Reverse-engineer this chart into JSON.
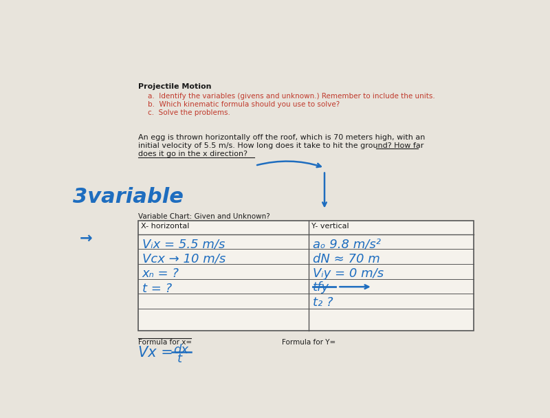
{
  "background_color": "#e8e4dc",
  "title": "Projectile Motion",
  "inst_a": "a.  Identify the variables (givens and unknown.) Remember to include the units.",
  "inst_b": "b.  Which kinematic formula should you use to solve?",
  "inst_c": "c.  Solve the problems.",
  "prob1": "An egg is thrown horizontally off the roof, which is 70 meters high, with an",
  "prob2": "initial velocity of 5.5 m/s. How long does it take to hit the ground? How far",
  "prob3": "does it go in the x direction?",
  "handwritten_label": "3variable",
  "table_label": "Variable Chart: Given and Unknown?",
  "col1_header": "X- horizontal",
  "col2_header": "Y- vertical",
  "formula_x_label": "Formula for x=",
  "formula_y_label": "Formula for Y=",
  "red_color": "#c0392b",
  "blue_hw": "#1e6dbf",
  "black": "#1a1a1a",
  "table_line": "#555555",
  "white_cell": "#ffffff"
}
